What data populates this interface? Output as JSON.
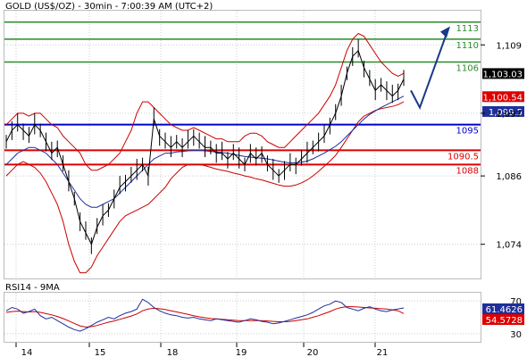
{
  "header": {
    "title": "GOLD (US$/OZ) - 30min - 7:00:39 AM (UTC+2)",
    "rsi_title": "RSI14 - 9MA"
  },
  "colors": {
    "price": "#000000",
    "bollinger": "#cc0000",
    "moving_average": "#1f2f9a",
    "resistance": "#2a8a2a",
    "pivot": "#0000cc",
    "support": "#dd0000",
    "forecast_arrow": "#1a3a8a",
    "current_price_bg": "#000000",
    "upper_value_bg": "#dd0000",
    "lower_value_bg": "#1f2f9a",
    "grid": "#cccccc"
  },
  "chart_data": [
    {
      "type": "line",
      "name": "price-panel",
      "x": [
        "14",
        "15",
        "18",
        "19",
        "20",
        "21"
      ],
      "ylim": [
        1068,
        1115
      ],
      "y_ticks": [
        {
          "value": 1074,
          "label": "1,074"
        },
        {
          "value": 1086,
          "label": "1,086"
        },
        {
          "value": 1097,
          "label": "1,097"
        },
        {
          "value": 1109,
          "label": "1,109"
        }
      ],
      "levels": [
        {
          "value": 1113,
          "label": "1113",
          "kind": "resistance"
        },
        {
          "value": 1110,
          "label": "1110",
          "kind": "resistance"
        },
        {
          "value": 1106,
          "label": "1106",
          "kind": "resistance"
        },
        {
          "value": 1095,
          "label": "1095",
          "kind": "pivot"
        },
        {
          "value": 1090.5,
          "label": "1090.5",
          "kind": "support"
        },
        {
          "value": 1088,
          "label": "1088",
          "kind": "support"
        }
      ],
      "price_boxes": [
        {
          "value": 1103.03,
          "label": "1,103.03",
          "kind": "current"
        },
        {
          "value": 1100.54,
          "label": "1,100.54",
          "kind": "upper"
        },
        {
          "value": 1099.5,
          "label": "1,099.5",
          "kind": "lower"
        }
      ],
      "price_series": [
        1092,
        1094,
        1095,
        1094,
        1093,
        1095,
        1094,
        1092,
        1090,
        1091,
        1088,
        1085,
        1082,
        1078,
        1076,
        1074,
        1077,
        1079,
        1080,
        1082,
        1084,
        1085,
        1086,
        1087,
        1088,
        1086,
        1096,
        1093,
        1092,
        1091,
        1092,
        1091,
        1092,
        1093,
        1092,
        1091,
        1091,
        1090,
        1090,
        1089,
        1090,
        1089,
        1088,
        1090,
        1089,
        1090,
        1088,
        1087,
        1086,
        1087,
        1088,
        1088,
        1089,
        1090,
        1091,
        1092,
        1093,
        1095,
        1097,
        1100,
        1104,
        1107,
        1108,
        1105,
        1103,
        1101,
        1102,
        1101,
        1100,
        1101,
        1103
      ],
      "ma_series": [
        1088,
        1089,
        1090,
        1090.5,
        1091,
        1091,
        1090.5,
        1090,
        1089,
        1088,
        1086.5,
        1085,
        1083.5,
        1082,
        1081,
        1080.5,
        1080.5,
        1081,
        1081.5,
        1082,
        1083,
        1084,
        1085,
        1086,
        1087,
        1088,
        1089,
        1089.5,
        1090,
        1090,
        1090.2,
        1090.3,
        1090.4,
        1090.5,
        1090.5,
        1090.4,
        1090.3,
        1090.2,
        1090.1,
        1090,
        1089.8,
        1089.6,
        1089.4,
        1089.3,
        1089.2,
        1089.1,
        1089,
        1088.8,
        1088.6,
        1088.4,
        1088.3,
        1088.3,
        1088.4,
        1088.6,
        1089,
        1089.5,
        1090,
        1090.6,
        1091.2,
        1092,
        1093,
        1094,
        1095,
        1096,
        1096.8,
        1097.4,
        1098,
        1098.5,
        1099,
        1099.5,
        1100
      ],
      "upper_band": [
        1095,
        1096,
        1097,
        1097,
        1096.5,
        1097,
        1097,
        1096,
        1095,
        1094.5,
        1093,
        1092,
        1091,
        1090,
        1088,
        1087,
        1087,
        1087.5,
        1088,
        1089,
        1090,
        1092,
        1094,
        1097,
        1099,
        1099,
        1098,
        1097,
        1096,
        1095,
        1094.5,
        1094,
        1094,
        1094.5,
        1094,
        1093.5,
        1093,
        1092.5,
        1092.5,
        1092,
        1092,
        1092,
        1093,
        1093.5,
        1093.5,
        1093,
        1092,
        1091.5,
        1091,
        1091,
        1092,
        1093,
        1094,
        1095,
        1096,
        1097,
        1098.5,
        1100,
        1102,
        1105,
        1108,
        1110,
        1111,
        1110.5,
        1109,
        1107.5,
        1106,
        1105,
        1104,
        1103.5,
        1104
      ],
      "lower_band": [
        1086,
        1087,
        1088,
        1088.5,
        1088,
        1087.5,
        1086.5,
        1085,
        1083,
        1081,
        1078,
        1074,
        1071,
        1069,
        1069,
        1070,
        1072,
        1073.5,
        1075,
        1076.5,
        1078,
        1079,
        1079.5,
        1080,
        1080.5,
        1081,
        1082,
        1083,
        1084,
        1085.5,
        1086.5,
        1087.5,
        1088,
        1088,
        1088,
        1087.8,
        1087.5,
        1087.2,
        1087,
        1086.8,
        1086.5,
        1086.3,
        1086,
        1085.8,
        1085.5,
        1085.3,
        1085,
        1084.7,
        1084.4,
        1084.2,
        1084.2,
        1084.4,
        1084.8,
        1085.3,
        1086,
        1086.8,
        1087.7,
        1088.6,
        1089.6,
        1091,
        1092.5,
        1094,
        1095.5,
        1096.5,
        1097,
        1097.5,
        1097.8,
        1098,
        1098.2,
        1098.5,
        1099
      ],
      "forecast_path": [
        1101,
        1098,
        1111
      ]
    },
    {
      "type": "line",
      "name": "rsi-panel",
      "x": [
        "14",
        "15",
        "18",
        "19",
        "20",
        "21"
      ],
      "ylim": [
        20,
        80
      ],
      "y_ticks": [
        {
          "value": 70,
          "label": "70"
        },
        {
          "value": 30,
          "label": "30"
        }
      ],
      "value_boxes": [
        {
          "value": 61.4626,
          "label": "61.4626",
          "kind": "rsi"
        },
        {
          "value": 54.5728,
          "label": "54.5728",
          "kind": "ma"
        }
      ],
      "rsi_series": [
        58,
        62,
        60,
        55,
        57,
        60,
        52,
        48,
        50,
        46,
        42,
        38,
        35,
        33,
        36,
        40,
        44,
        47,
        50,
        48,
        52,
        55,
        57,
        60,
        72,
        68,
        62,
        58,
        55,
        53,
        52,
        50,
        49,
        50,
        48,
        47,
        46,
        48,
        47,
        46,
        45,
        44,
        46,
        48,
        47,
        45,
        44,
        42,
        43,
        45,
        47,
        49,
        51,
        53,
        56,
        60,
        64,
        66,
        70,
        68,
        62,
        60,
        58,
        61,
        63,
        60,
        58,
        57,
        59,
        60,
        61.4626
      ],
      "ma_series": [
        56,
        57,
        57.5,
        57,
        56.5,
        57,
        56,
        54.5,
        53,
        51,
        48.5,
        45.5,
        42.5,
        39.5,
        38,
        38.5,
        40,
        42,
        44,
        45.5,
        47.5,
        49.5,
        51.5,
        54,
        58,
        60,
        61,
        60.5,
        59.5,
        58,
        56.5,
        55,
        53.5,
        52,
        50.5,
        49.5,
        48.5,
        48,
        47.5,
        47,
        46.5,
        46,
        46,
        46,
        46,
        46,
        45.5,
        45,
        44.5,
        44.5,
        45,
        46,
        47,
        48,
        50,
        52,
        54.5,
        57,
        60,
        62,
        63,
        63,
        62.5,
        62,
        61.5,
        61,
        60.5,
        60,
        59,
        58,
        54.5728
      ]
    }
  ]
}
